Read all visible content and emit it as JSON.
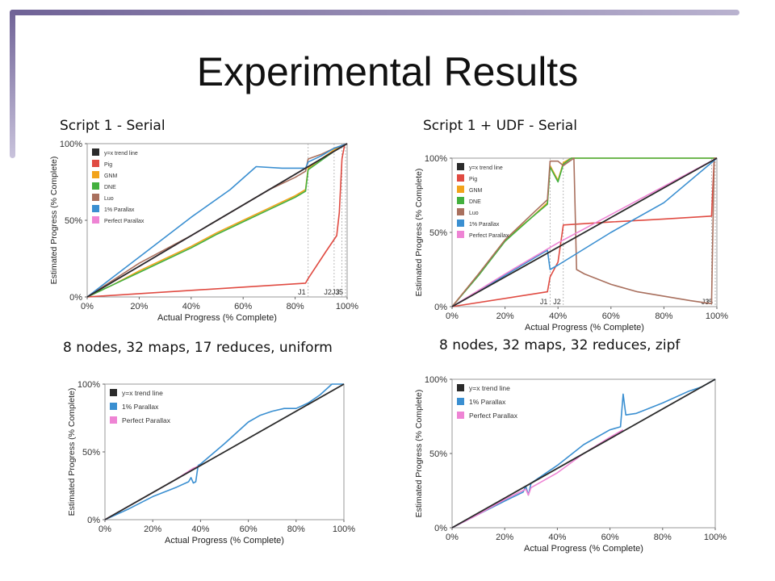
{
  "slide": {
    "title": "Experimental Results",
    "accent_color": "#7a6ea3"
  },
  "captions": {
    "top_left": "Script 1 - Serial",
    "top_right": "Script 1 + UDF - Serial",
    "bottom_left": "8 nodes, 32 maps, 17 reduces, uniform",
    "bottom_right": "8 nodes, 32 maps, 32 reduces, zipf"
  },
  "colors": {
    "y=x trend line": "#2b2b2b",
    "Pig": "#e04b42",
    "GNM": "#f2a31b",
    "DNE": "#43b03e",
    "Luo": "#a9705e",
    "1% Parallax": "#3a8fd1",
    "Perfect Parallax": "#ee84d4"
  },
  "chart_data": [
    {
      "type": "line",
      "xlabel": "Actual Progress (% Complete)",
      "ylabel": "Estimated Progress (% Complete)",
      "xticks": [
        "0%",
        "20%",
        "40%",
        "60%",
        "80%",
        "100%"
      ],
      "yticks": [
        "0%",
        "50%",
        "100%"
      ],
      "xlim": [
        0,
        100
      ],
      "ylim": [
        0,
        100
      ],
      "legend_position": "top-left",
      "job_markers": [
        {
          "label": "J1",
          "x": 85
        },
        {
          "label": "J2",
          "x": 95
        },
        {
          "label": "J3",
          "x": 98
        },
        {
          "label": "J5",
          "x": 101
        }
      ],
      "series": [
        {
          "name": "y=x trend line",
          "points": [
            [
              0,
              0
            ],
            [
              100,
              100
            ]
          ]
        },
        {
          "name": "Pig",
          "points": [
            [
              0,
              0
            ],
            [
              84,
              9
            ],
            [
              85,
              12
            ],
            [
              92,
              30
            ],
            [
              96,
              40
            ],
            [
              97,
              55
            ],
            [
              98,
              90
            ],
            [
              99,
              99
            ],
            [
              100,
              100
            ]
          ]
        },
        {
          "name": "GNM",
          "points": [
            [
              0,
              0
            ],
            [
              10,
              8
            ],
            [
              20,
              17
            ],
            [
              30,
              25
            ],
            [
              40,
              33
            ],
            [
              50,
              42
            ],
            [
              60,
              50
            ],
            [
              70,
              58
            ],
            [
              80,
              66
            ],
            [
              84,
              70
            ],
            [
              85,
              84
            ],
            [
              90,
              90
            ],
            [
              95,
              96
            ],
            [
              100,
              100
            ]
          ]
        },
        {
          "name": "DNE",
          "points": [
            [
              0,
              0
            ],
            [
              10,
              8
            ],
            [
              20,
              16
            ],
            [
              30,
              24
            ],
            [
              40,
              32
            ],
            [
              50,
              41
            ],
            [
              60,
              49
            ],
            [
              70,
              57
            ],
            [
              80,
              65
            ],
            [
              84,
              69
            ],
            [
              85,
              83
            ],
            [
              90,
              89
            ],
            [
              95,
              95
            ],
            [
              100,
              100
            ]
          ]
        },
        {
          "name": "Luo",
          "points": [
            [
              0,
              0
            ],
            [
              20,
              22
            ],
            [
              40,
              40
            ],
            [
              50,
              50
            ],
            [
              60,
              60
            ],
            [
              70,
              70
            ],
            [
              80,
              78
            ],
            [
              84,
              82
            ],
            [
              85,
              90
            ],
            [
              90,
              93
            ],
            [
              95,
              97
            ],
            [
              100,
              100
            ]
          ]
        },
        {
          "name": "1% Parallax",
          "points": [
            [
              0,
              0
            ],
            [
              20,
              26
            ],
            [
              40,
              52
            ],
            [
              55,
              70
            ],
            [
              65,
              85
            ],
            [
              75,
              84
            ],
            [
              84,
              84
            ],
            [
              85,
              88
            ],
            [
              90,
              92
            ],
            [
              95,
              97
            ],
            [
              100,
              100
            ]
          ]
        },
        {
          "name": "Perfect Parallax",
          "points": [
            [
              0,
              0
            ],
            [
              100,
              100
            ]
          ]
        }
      ]
    },
    {
      "type": "line",
      "xlabel": "Actual Progress (% Complete)",
      "ylabel": "Estimated Progress (% Complete)",
      "xticks": [
        "0%",
        "20%",
        "40%",
        "60%",
        "80%",
        "100%"
      ],
      "yticks": [
        "0%",
        "50%",
        "100%"
      ],
      "xlim": [
        0,
        100
      ],
      "ylim": [
        0,
        100
      ],
      "legend_position": "top-left",
      "job_markers": [
        {
          "label": "J1",
          "x": 37
        },
        {
          "label": "J2",
          "x": 42
        },
        {
          "label": "J3",
          "x": 98
        },
        {
          "label": "J5",
          "x": 101
        }
      ],
      "series": [
        {
          "name": "y=x trend line",
          "points": [
            [
              0,
              0
            ],
            [
              100,
              100
            ]
          ]
        },
        {
          "name": "Pig",
          "points": [
            [
              0,
              0
            ],
            [
              36,
              10
            ],
            [
              37,
              20
            ],
            [
              40,
              30
            ],
            [
              42,
              55
            ],
            [
              60,
              57
            ],
            [
              80,
              59
            ],
            [
              98,
              61
            ],
            [
              99,
              100
            ],
            [
              100,
              100
            ]
          ]
        },
        {
          "name": "GNM",
          "points": [
            [
              0,
              0
            ],
            [
              10,
              22
            ],
            [
              20,
              45
            ],
            [
              30,
              60
            ],
            [
              36,
              70
            ],
            [
              37,
              95
            ],
            [
              40,
              85
            ],
            [
              42,
              97
            ],
            [
              45,
              100
            ],
            [
              100,
              100
            ]
          ]
        },
        {
          "name": "DNE",
          "points": [
            [
              0,
              0
            ],
            [
              10,
              21
            ],
            [
              20,
              44
            ],
            [
              30,
              60
            ],
            [
              36,
              69
            ],
            [
              37,
              94
            ],
            [
              40,
              84
            ],
            [
              42,
              96
            ],
            [
              45,
              100
            ],
            [
              100,
              100
            ]
          ]
        },
        {
          "name": "Luo",
          "points": [
            [
              0,
              0
            ],
            [
              10,
              22
            ],
            [
              20,
              45
            ],
            [
              30,
              62
            ],
            [
              36,
              72
            ],
            [
              37,
              98
            ],
            [
              40,
              98
            ],
            [
              42,
              95
            ],
            [
              46,
              100
            ],
            [
              47,
              25
            ],
            [
              50,
              22
            ],
            [
              60,
              15
            ],
            [
              70,
              10
            ],
            [
              80,
              7
            ],
            [
              90,
              4
            ],
            [
              98,
              2
            ],
            [
              99,
              100
            ],
            [
              100,
              100
            ]
          ]
        },
        {
          "name": "1% Parallax",
          "points": [
            [
              0,
              0
            ],
            [
              36,
              38
            ],
            [
              37,
              25
            ],
            [
              40,
              28
            ],
            [
              60,
              50
            ],
            [
              80,
              70
            ],
            [
              100,
              100
            ]
          ]
        },
        {
          "name": "Perfect Parallax",
          "points": [
            [
              0,
              0
            ],
            [
              20,
              22
            ],
            [
              40,
              43
            ],
            [
              60,
              62
            ],
            [
              80,
              81
            ],
            [
              100,
              100
            ]
          ]
        }
      ]
    },
    {
      "type": "line",
      "xlabel": "Actual Progress (% Complete)",
      "ylabel": "Estimated Progress (% Complete)",
      "xticks": [
        "0%",
        "20%",
        "40%",
        "60%",
        "80%",
        "100%"
      ],
      "yticks": [
        "0%",
        "50%",
        "100%"
      ],
      "xlim": [
        0,
        100
      ],
      "ylim": [
        0,
        100
      ],
      "legend_position": "top-left",
      "job_markers": [],
      "series": [
        {
          "name": "y=x trend line",
          "points": [
            [
              0,
              0
            ],
            [
              100,
              100
            ]
          ]
        },
        {
          "name": "1% Parallax",
          "points": [
            [
              0,
              0
            ],
            [
              10,
              8
            ],
            [
              20,
              17
            ],
            [
              30,
              24
            ],
            [
              35,
              28
            ],
            [
              36,
              31
            ],
            [
              37,
              27
            ],
            [
              38,
              28
            ],
            [
              39,
              40
            ],
            [
              40,
              41
            ],
            [
              50,
              56
            ],
            [
              60,
              72
            ],
            [
              65,
              77
            ],
            [
              70,
              80
            ],
            [
              75,
              82
            ],
            [
              80,
              82
            ],
            [
              85,
              86
            ],
            [
              90,
              92
            ],
            [
              95,
              100
            ],
            [
              100,
              100
            ]
          ]
        },
        {
          "name": "Perfect Parallax",
          "points": [
            [
              0,
              0
            ],
            [
              10,
              10
            ],
            [
              20,
              20
            ],
            [
              30,
              30
            ],
            [
              37,
              38
            ],
            [
              40,
              40
            ]
          ]
        }
      ]
    },
    {
      "type": "line",
      "xlabel": "Actual Progress (% Complete)",
      "ylabel": "Estimated Progress (% Complete)",
      "xticks": [
        "0%",
        "20%",
        "40%",
        "60%",
        "80%",
        "100%"
      ],
      "yticks": [
        "0%",
        "50%",
        "100%"
      ],
      "xlim": [
        0,
        100
      ],
      "ylim": [
        0,
        100
      ],
      "legend_position": "top-left",
      "job_markers": [],
      "series": [
        {
          "name": "y=x trend line",
          "points": [
            [
              0,
              0
            ],
            [
              100,
              100
            ]
          ]
        },
        {
          "name": "1% Parallax",
          "points": [
            [
              0,
              0
            ],
            [
              10,
              9
            ],
            [
              20,
              18
            ],
            [
              27,
              24
            ],
            [
              28,
              28
            ],
            [
              29,
              22
            ],
            [
              30,
              30
            ],
            [
              40,
              42
            ],
            [
              50,
              56
            ],
            [
              60,
              66
            ],
            [
              64,
              68
            ],
            [
              65,
              90
            ],
            [
              66,
              76
            ],
            [
              70,
              77
            ],
            [
              80,
              84
            ],
            [
              90,
              92
            ],
            [
              95,
              95
            ],
            [
              100,
              100
            ]
          ]
        },
        {
          "name": "Perfect Parallax",
          "points": [
            [
              0,
              0
            ],
            [
              10,
              9
            ],
            [
              20,
              19
            ],
            [
              28,
              26
            ],
            [
              29,
              22
            ],
            [
              30,
              27
            ],
            [
              40,
              37
            ],
            [
              50,
              50
            ],
            [
              60,
              61
            ],
            [
              65,
              66
            ]
          ]
        }
      ]
    }
  ]
}
